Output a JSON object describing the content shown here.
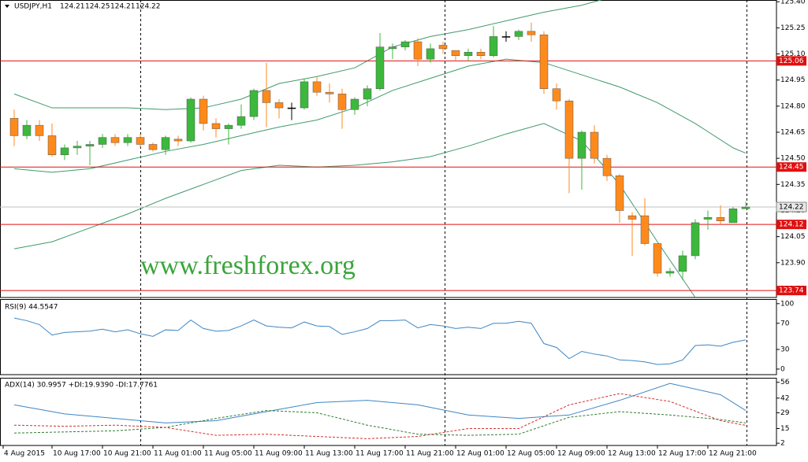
{
  "chart_data": [
    {
      "type": "candlestick",
      "title": "USDJPY,H1",
      "quote": [
        124.21,
        124.25,
        124.21,
        124.22
      ],
      "watermark": "www.freshforex.org",
      "up_color": "#3cb83c",
      "down_color": "#ff8a1c",
      "doji_color": "#000000",
      "open": [
        124.73,
        124.63,
        124.69,
        124.63,
        124.52,
        124.56,
        124.57,
        124.58,
        124.62,
        124.59,
        124.62,
        124.58,
        124.55,
        124.61,
        124.6,
        124.84,
        124.7,
        124.67,
        124.69,
        124.74,
        124.89,
        124.82,
        124.79,
        124.79,
        124.94,
        124.88,
        124.87,
        124.78,
        124.84,
        124.9,
        125.13,
        125.14,
        125.17,
        125.07,
        125.15,
        125.12,
        125.09,
        125.11,
        125.09,
        125.2,
        125.2,
        125.23,
        125.21,
        124.9,
        124.83,
        124.5,
        124.65,
        124.5,
        124.4,
        124.17,
        124.17,
        124.01,
        123.84,
        123.85,
        123.94,
        124.15,
        124.16,
        124.13,
        124.21
      ],
      "high": [
        124.78,
        124.72,
        124.72,
        124.7,
        124.58,
        124.6,
        124.6,
        124.64,
        124.64,
        124.64,
        124.64,
        124.59,
        124.63,
        124.63,
        124.85,
        124.86,
        124.73,
        124.7,
        124.81,
        124.9,
        125.05,
        124.84,
        124.82,
        124.96,
        124.97,
        124.93,
        124.9,
        124.85,
        124.92,
        125.22,
        125.16,
        125.18,
        125.19,
        125.16,
        125.17,
        125.12,
        125.13,
        125.13,
        125.26,
        125.23,
        125.24,
        125.28,
        125.23,
        124.93,
        124.84,
        124.66,
        124.69,
        124.52,
        124.41,
        124.19,
        124.27,
        124.01,
        123.87,
        123.97,
        124.15,
        124.2,
        124.23,
        124.22,
        124.25
      ],
      "low": [
        124.57,
        124.61,
        124.6,
        124.51,
        124.49,
        124.52,
        124.46,
        124.56,
        124.57,
        124.57,
        124.56,
        124.54,
        124.52,
        124.57,
        124.59,
        124.66,
        124.62,
        124.58,
        124.67,
        124.72,
        124.68,
        124.73,
        124.72,
        124.78,
        124.86,
        124.82,
        124.67,
        124.75,
        124.8,
        124.89,
        125.07,
        125.12,
        125.03,
        125.05,
        125.1,
        125.06,
        125.06,
        125.07,
        125.08,
        125.17,
        125.18,
        125.17,
        124.87,
        124.78,
        124.3,
        124.32,
        124.47,
        124.37,
        124.13,
        123.94,
        124.0,
        123.82,
        123.82,
        123.8,
        123.92,
        124.09,
        124.12,
        124.13,
        124.21
      ],
      "close": [
        124.63,
        124.69,
        124.63,
        124.52,
        124.56,
        124.57,
        124.58,
        124.62,
        124.59,
        124.62,
        124.58,
        124.55,
        124.62,
        124.6,
        124.84,
        124.7,
        124.67,
        124.69,
        124.74,
        124.89,
        124.82,
        124.79,
        124.79,
        124.94,
        124.88,
        124.87,
        124.78,
        124.84,
        124.9,
        125.14,
        125.14,
        125.17,
        125.07,
        125.13,
        125.13,
        125.09,
        125.11,
        125.09,
        125.2,
        125.2,
        125.23,
        125.21,
        124.9,
        124.83,
        124.5,
        124.65,
        124.5,
        124.4,
        124.2,
        124.15,
        124.01,
        123.84,
        123.85,
        123.94,
        124.13,
        124.16,
        124.14,
        124.21,
        124.22
      ],
      "bands": {
        "color": "#3f9a6a",
        "x": [
          0,
          3,
          6,
          9,
          12,
          15,
          18,
          21,
          24,
          27,
          30,
          33,
          36,
          39,
          42,
          45,
          48,
          51,
          54,
          57,
          58
        ],
        "lines": [
          {
            "values": [
              124.87,
              124.79,
              124.79,
              124.79,
              124.78,
              124.79,
              124.84,
              124.93,
              124.97,
              125.02,
              125.14,
              125.2,
              125.24,
              125.29,
              125.34,
              125.38,
              125.44,
              125.5,
              125.55,
              125.6,
              125.61
            ]
          },
          {
            "values": [
              124.44,
              124.42,
              124.44,
              124.49,
              124.54,
              124.58,
              124.63,
              124.68,
              124.72,
              124.79,
              124.89,
              124.96,
              125.03,
              125.07,
              125.05,
              124.98,
              124.91,
              124.82,
              124.7,
              124.56,
              124.53
            ]
          },
          {
            "values": [
              123.98,
              124.02,
              124.1,
              124.18,
              124.27,
              124.35,
              124.43,
              124.46,
              124.45,
              124.46,
              124.48,
              124.51,
              124.57,
              124.64,
              124.7,
              124.6,
              124.35,
              124.02,
              123.7,
              123.45,
              123.4
            ]
          }
        ]
      },
      "levels": [
        {
          "value": 125.06,
          "color": "#e01010"
        },
        {
          "value": 124.45,
          "color": "#e01010"
        },
        {
          "value": 124.12,
          "color": "#e01010"
        },
        {
          "value": 123.74,
          "color": "#e01010"
        }
      ],
      "price": {
        "value": 124.22,
        "color": "#c0c0c0"
      },
      "ylim": [
        123.7,
        125.41
      ],
      "yticks": [
        {
          "value": 125.4,
          "label": "125.40"
        },
        {
          "value": 125.25,
          "label": "125.25"
        },
        {
          "value": 125.1,
          "label": "125.10"
        },
        {
          "value": 124.95,
          "label": "124.95"
        },
        {
          "value": 124.8,
          "label": "124.80"
        },
        {
          "value": 124.65,
          "label": "124.65"
        },
        {
          "value": 124.5,
          "label": "124.50"
        },
        {
          "value": 124.35,
          "label": "124.35"
        },
        {
          "value": 124.2,
          "label": "124.20"
        },
        {
          "value": 124.05,
          "label": "124.05"
        },
        {
          "value": 123.9,
          "label": "123.90"
        },
        {
          "value": 123.75,
          "label": "123.75"
        }
      ],
      "time_labels": [
        "4 Aug 2015",
        "10 Aug 17:00",
        "10 Aug 21:00",
        "11 Aug 01:00",
        "11 Aug 05:00",
        "11 Aug 09:00",
        "11 Aug 13:00",
        "11 Aug 17:00",
        "11 Aug 21:00",
        "12 Aug 01:00",
        "12 Aug 05:00",
        "12 Aug 09:00",
        "12 Aug 13:00",
        "12 Aug 17:00",
        "12 Aug 21:00"
      ]
    },
    {
      "type": "line",
      "title": "RSI(9) 44.5547",
      "color": "#3c86c4",
      "values": [
        78,
        74,
        68,
        52,
        56,
        57,
        58,
        61,
        57,
        60,
        54,
        50,
        60,
        59,
        75,
        62,
        58,
        59,
        66,
        75,
        66,
        64,
        63,
        72,
        66,
        65,
        53,
        57,
        62,
        74,
        74,
        75,
        63,
        68,
        66,
        62,
        64,
        62,
        70,
        70,
        73,
        70,
        39,
        33,
        16,
        27,
        23,
        20,
        14,
        13,
        11,
        7,
        8,
        14,
        36,
        37,
        35,
        41,
        44.55
      ],
      "ylim": [
        -8.5,
        107
      ],
      "yticks": [
        100,
        70,
        30,
        0
      ]
    },
    {
      "type": "line",
      "title": "ADX(14) 30.9957 +DI:19.9390 -DI:17.7761",
      "x": [
        0,
        4,
        8,
        12,
        16,
        20,
        24,
        28,
        32,
        36,
        40,
        44,
        48,
        52,
        56,
        58
      ],
      "series": [
        {
          "color": "#3c86c4",
          "dash": false,
          "values": [
            36,
            28,
            24,
            20,
            22,
            30,
            38,
            40,
            36,
            27,
            24,
            27,
            40,
            55,
            45,
            31
          ]
        },
        {
          "color": "#2e7d32",
          "dash": true,
          "values": [
            11,
            12,
            13,
            16,
            24,
            31,
            29,
            18,
            10,
            9,
            10,
            25,
            30,
            27,
            23,
            20
          ]
        },
        {
          "color": "#d32f2f",
          "dash": true,
          "values": [
            18,
            17,
            18,
            16,
            9,
            10,
            8,
            6,
            8,
            15,
            15,
            36,
            46,
            39,
            22,
            17.8
          ]
        }
      ],
      "ylim": [
        0,
        60
      ],
      "yticks": [
        56,
        42,
        29,
        15,
        2
      ]
    }
  ]
}
